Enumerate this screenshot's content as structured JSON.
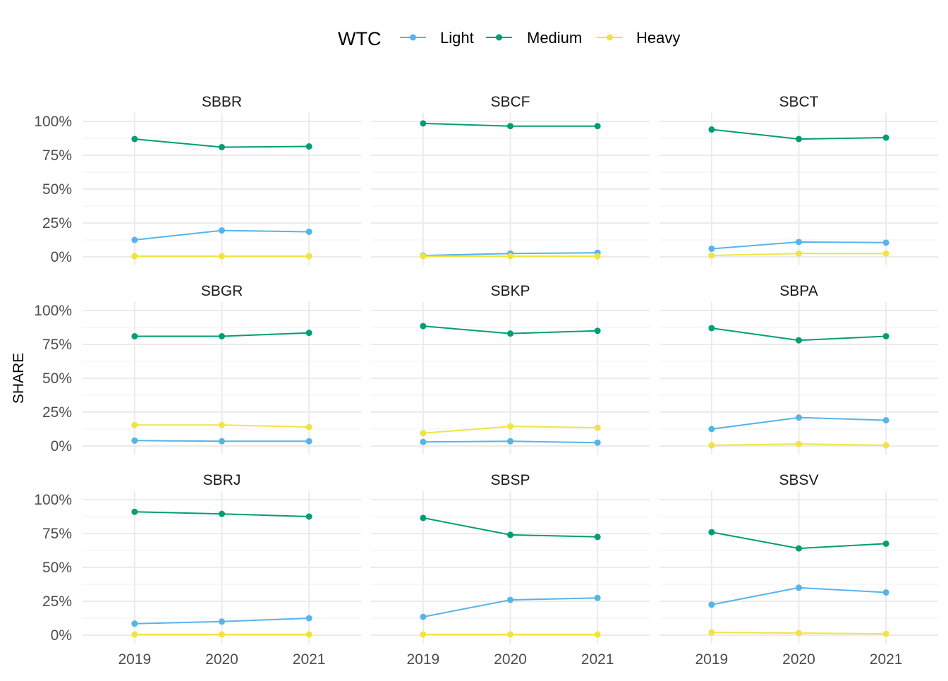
{
  "chart_data": {
    "type": "line",
    "layout": "facet-grid-3x3",
    "ylabel": "SHARE",
    "xlabel": "",
    "x": [
      "2019",
      "2020",
      "2021"
    ],
    "ylim": [
      0,
      100
    ],
    "y_ticks": [
      "0%",
      "25%",
      "50%",
      "75%",
      "100%"
    ],
    "y_tick_values": [
      0,
      25,
      50,
      75,
      100
    ],
    "grid": true,
    "legend": {
      "title": "WTC",
      "position": "top",
      "entries": [
        "Light",
        "Medium",
        "Heavy"
      ]
    },
    "series_colors": {
      "Light": "#56B4E9",
      "Medium": "#009E73",
      "Heavy": "#F0E442"
    },
    "panels": [
      {
        "title": "SBBR",
        "series": [
          {
            "name": "Light",
            "values": [
              12.5,
              19.5,
              18.5
            ]
          },
          {
            "name": "Medium",
            "values": [
              87,
              81,
              81.5
            ]
          },
          {
            "name": "Heavy",
            "values": [
              0.5,
              0.5,
              0.5
            ]
          }
        ]
      },
      {
        "title": "SBCF",
        "series": [
          {
            "name": "Light",
            "values": [
              1,
              2.5,
              3
            ]
          },
          {
            "name": "Medium",
            "values": [
              98.5,
              96.5,
              96.5
            ]
          },
          {
            "name": "Heavy",
            "values": [
              0.5,
              0.5,
              0.5
            ]
          }
        ]
      },
      {
        "title": "SBCT",
        "series": [
          {
            "name": "Light",
            "values": [
              6,
              11,
              10.5
            ]
          },
          {
            "name": "Medium",
            "values": [
              94,
              87,
              88
            ]
          },
          {
            "name": "Heavy",
            "values": [
              1,
              2.5,
              2.5
            ]
          }
        ]
      },
      {
        "title": "SBGR",
        "series": [
          {
            "name": "Light",
            "values": [
              4,
              3.5,
              3.5
            ]
          },
          {
            "name": "Medium",
            "values": [
              81,
              81,
              83.5
            ]
          },
          {
            "name": "Heavy",
            "values": [
              15.5,
              15.5,
              14
            ]
          }
        ]
      },
      {
        "title": "SBKP",
        "series": [
          {
            "name": "Light",
            "values": [
              3,
              3.5,
              2.5
            ]
          },
          {
            "name": "Medium",
            "values": [
              88.5,
              83,
              85
            ]
          },
          {
            "name": "Heavy",
            "values": [
              9.5,
              14.5,
              13.5
            ]
          }
        ]
      },
      {
        "title": "SBPA",
        "series": [
          {
            "name": "Light",
            "values": [
              12.5,
              21,
              19
            ]
          },
          {
            "name": "Medium",
            "values": [
              87,
              78,
              81
            ]
          },
          {
            "name": "Heavy",
            "values": [
              0.5,
              1.5,
              0.5
            ]
          }
        ]
      },
      {
        "title": "SBRJ",
        "series": [
          {
            "name": "Light",
            "values": [
              8.5,
              10,
              12.5
            ]
          },
          {
            "name": "Medium",
            "values": [
              91,
              89.5,
              87.5
            ]
          },
          {
            "name": "Heavy",
            "values": [
              0.5,
              0.5,
              0.5
            ]
          }
        ]
      },
      {
        "title": "SBSP",
        "series": [
          {
            "name": "Light",
            "values": [
              13.5,
              26,
              27.5
            ]
          },
          {
            "name": "Medium",
            "values": [
              86.5,
              74,
              72.5
            ]
          },
          {
            "name": "Heavy",
            "values": [
              0.5,
              0.5,
              0.5
            ]
          }
        ]
      },
      {
        "title": "SBSV",
        "series": [
          {
            "name": "Light",
            "values": [
              22.5,
              35,
              31.5
            ]
          },
          {
            "name": "Medium",
            "values": [
              76,
              64,
              67.5
            ]
          },
          {
            "name": "Heavy",
            "values": [
              2,
              1.5,
              1
            ]
          }
        ]
      }
    ]
  }
}
